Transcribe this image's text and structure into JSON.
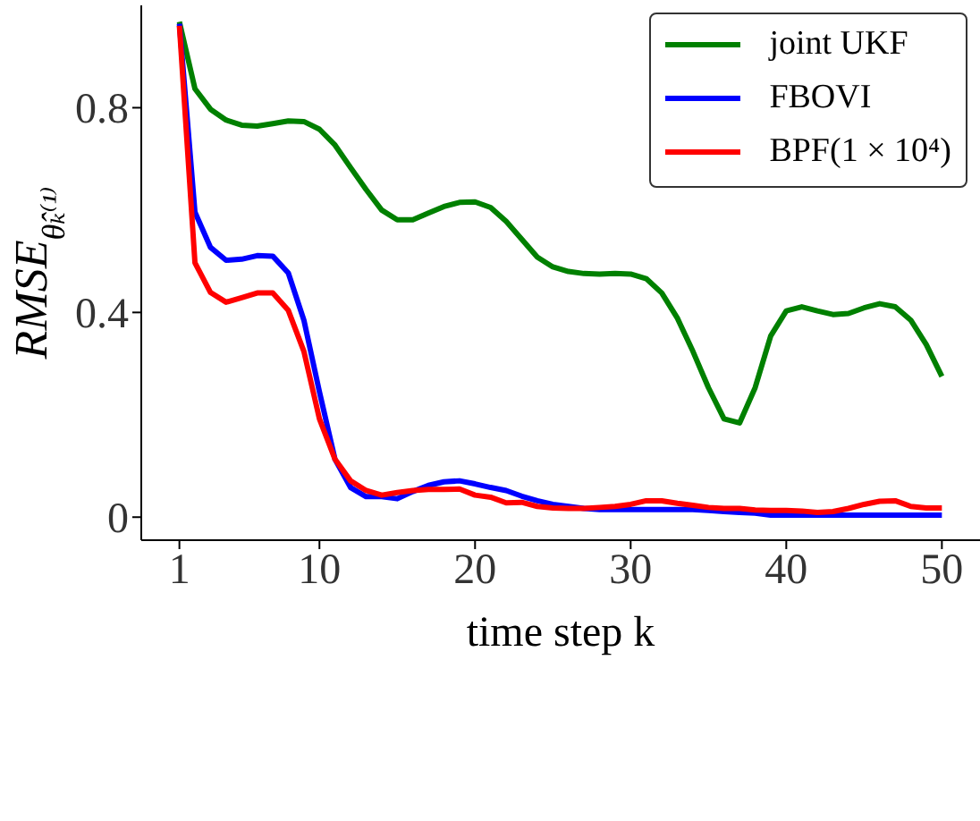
{
  "chart_data": {
    "type": "line",
    "xlabel": "time step k",
    "ylabel": "RMSE$_{θ̂ₖ⁽¹⁾}$",
    "x": [
      1,
      2,
      3,
      4,
      5,
      6,
      7,
      8,
      9,
      10,
      11,
      12,
      13,
      14,
      15,
      16,
      17,
      18,
      19,
      20,
      21,
      22,
      23,
      24,
      25,
      26,
      27,
      28,
      29,
      30,
      31,
      32,
      33,
      34,
      35,
      36,
      37,
      38,
      39,
      40,
      41,
      42,
      43,
      44,
      45,
      46,
      47,
      48,
      49,
      50
    ],
    "series": [
      {
        "name": "joint UKF",
        "color": "#008000",
        "values": [
          0.968,
          0.837,
          0.797,
          0.776,
          0.766,
          0.764,
          0.769,
          0.774,
          0.773,
          0.758,
          0.727,
          0.683,
          0.64,
          0.6,
          0.581,
          0.581,
          0.594,
          0.607,
          0.615,
          0.616,
          0.605,
          0.578,
          0.543,
          0.508,
          0.489,
          0.48,
          0.476,
          0.475,
          0.476,
          0.475,
          0.466,
          0.438,
          0.389,
          0.324,
          0.253,
          0.192,
          0.184,
          0.253,
          0.354,
          0.403,
          0.411,
          0.403,
          0.396,
          0.398,
          0.409,
          0.417,
          0.411,
          0.385,
          0.337,
          0.275
        ]
      },
      {
        "name": "FBOVI",
        "color": "#0000ff",
        "values": [
          0.964,
          0.596,
          0.527,
          0.502,
          0.504,
          0.511,
          0.51,
          0.477,
          0.385,
          0.245,
          0.113,
          0.058,
          0.04,
          0.04,
          0.036,
          0.05,
          0.062,
          0.069,
          0.071,
          0.065,
          0.058,
          0.052,
          0.041,
          0.032,
          0.025,
          0.021,
          0.017,
          0.015,
          0.015,
          0.015,
          0.015,
          0.015,
          0.015,
          0.015,
          0.013,
          0.011,
          0.009,
          0.008,
          0.004,
          0.004,
          0.004,
          0.004,
          0.004,
          0.004,
          0.004,
          0.004,
          0.004,
          0.004,
          0.004,
          0.004
        ]
      },
      {
        "name": "BPF(1 × 10⁴)",
        "color": "#ff0000",
        "values": [
          0.96,
          0.497,
          0.439,
          0.42,
          0.429,
          0.438,
          0.438,
          0.404,
          0.324,
          0.192,
          0.113,
          0.071,
          0.052,
          0.043,
          0.048,
          0.052,
          0.054,
          0.054,
          0.055,
          0.043,
          0.039,
          0.028,
          0.029,
          0.021,
          0.018,
          0.017,
          0.017,
          0.019,
          0.021,
          0.025,
          0.032,
          0.032,
          0.027,
          0.023,
          0.019,
          0.017,
          0.017,
          0.014,
          0.013,
          0.013,
          0.012,
          0.009,
          0.011,
          0.017,
          0.025,
          0.031,
          0.032,
          0.021,
          0.018,
          0.018
        ]
      }
    ],
    "xlim": [
      -1.45,
      52.45
    ],
    "xticks": [
      1,
      10,
      20,
      30,
      40,
      50
    ],
    "ylim": [
      -0.045,
      1.0
    ],
    "yticks": [
      0,
      0.4,
      0.8
    ],
    "legend": "top right",
    "marker": "none",
    "line_style": "solid"
  }
}
